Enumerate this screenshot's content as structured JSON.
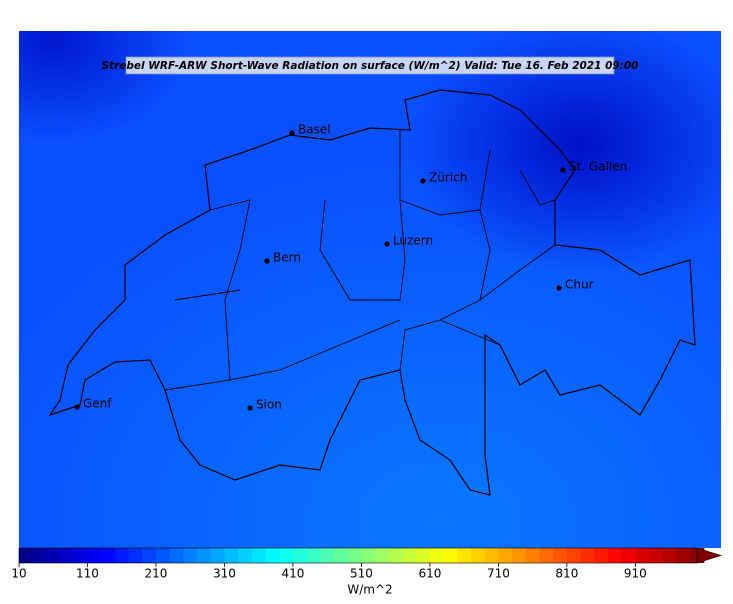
{
  "header": {
    "title": "Strebel WRF-ARW Short-Wave Radiation on surface (W/m^2)   Valid: Tue 16. Feb 2021 09:00"
  },
  "cities": [
    "Basel",
    "Zürich",
    "St. Gallen",
    "Luzern",
    "Bern",
    "Chur",
    "Genf",
    "Sion"
  ],
  "colorbar": {
    "label": "W/m^2",
    "lim": [
      10,
      1000
    ],
    "step": 20,
    "colormap": "jet",
    "extend": "max",
    "ticks": [
      10,
      110,
      210,
      310,
      410,
      510,
      610,
      710,
      810,
      910
    ]
  }
}
